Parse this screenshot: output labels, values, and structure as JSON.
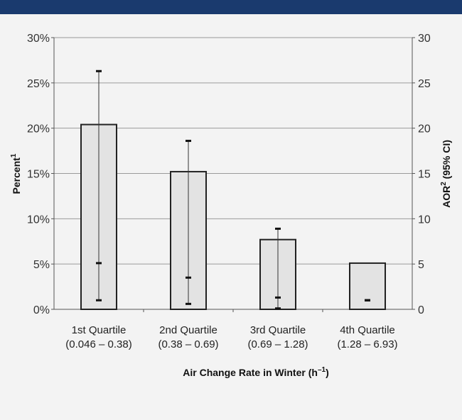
{
  "chart_data": {
    "type": "bar",
    "categories": [
      "1st Quartile",
      "2nd Quartile",
      "3rd Quartile",
      "4th Quartile"
    ],
    "category_ranges": [
      "(0.046 – 0.38)",
      "(0.38 – 0.69)",
      "(0.69 – 1.28)",
      "(1.28 – 6.93)"
    ],
    "series": [
      {
        "values": [
          20.4,
          15.2,
          7.7,
          5.1
        ]
      }
    ],
    "aor": {
      "point": [
        5.1,
        3.5,
        1.3,
        1.0
      ],
      "ci_low": [
        1.0,
        0.6,
        0.1,
        1.0
      ],
      "ci_high": [
        26.3,
        18.6,
        8.9,
        1.0
      ]
    },
    "y_left_ticks": [
      "0%",
      "5%",
      "10%",
      "15%",
      "20%",
      "25%",
      "30%"
    ],
    "y_right_ticks": [
      "0",
      "5",
      "10",
      "15",
      "20",
      "25",
      "30"
    ],
    "ylim": [
      0,
      30
    ],
    "xlabel": "Air Change Rate in Winter (h",
    "xlabel_sup": "–1",
    "xlabel_end": ")",
    "ylabel_left": "Percent",
    "ylabel_left_sup": "1",
    "ylabel_right": "AOR",
    "ylabel_right_sup": "2",
    "ylabel_right_end": " (95% CI)",
    "grid": true,
    "colors": {
      "bar_fill": "#e3e3e3",
      "bar_stroke": "#222222",
      "grid": "#9a9a9a",
      "header": "#1a3a6e",
      "background": "#f3f3f3"
    }
  }
}
